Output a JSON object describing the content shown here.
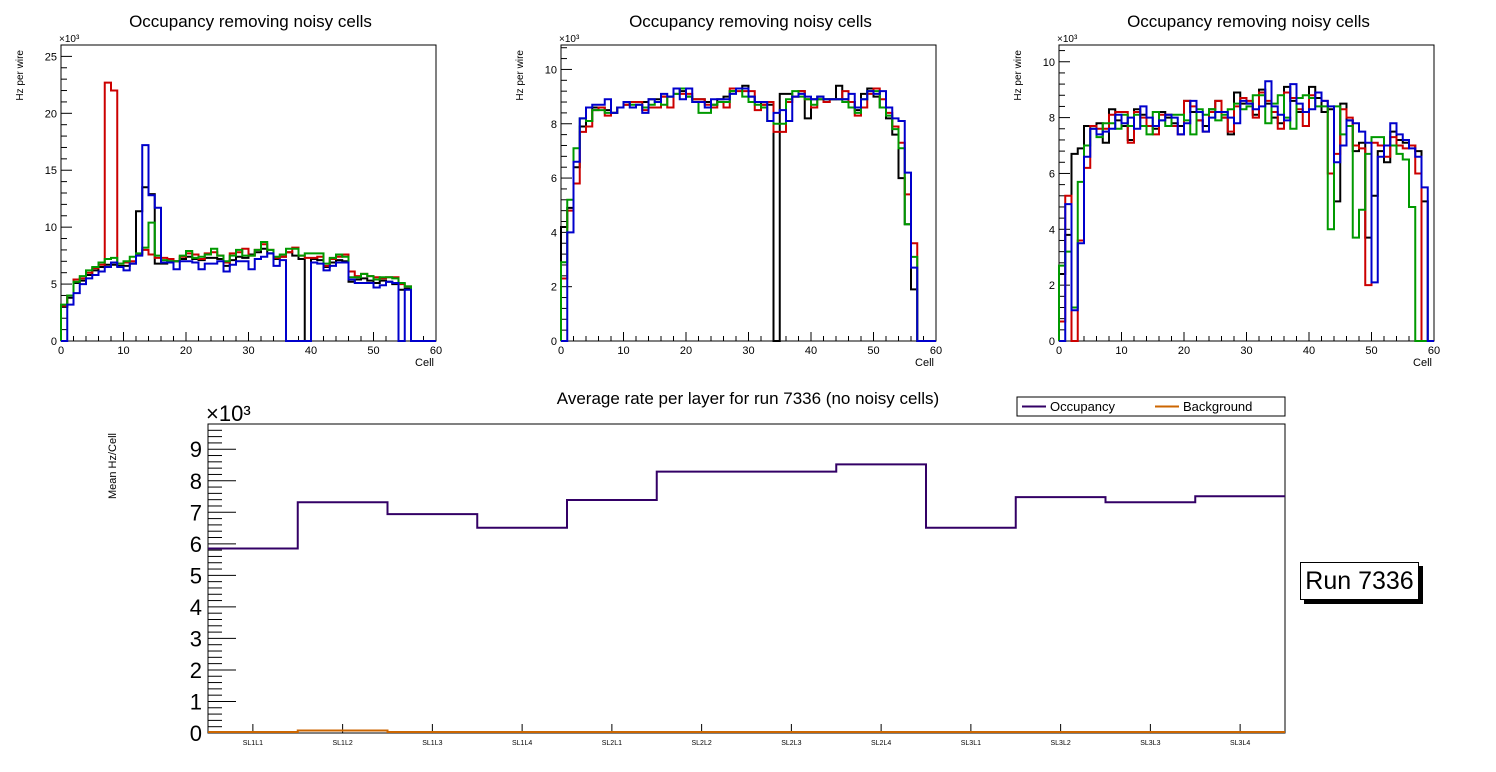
{
  "colors": {
    "black": "#000000",
    "red": "#cc0000",
    "green": "#009900",
    "blue": "#0000cc",
    "occupancy": "#330066",
    "background": "#cc6600"
  },
  "run_label": "Run 7336",
  "chart_data": [
    {
      "type": "line",
      "style": "step-histogram",
      "title": "Occupancy removing noisy cells",
      "xlabel": "Cell",
      "ylabel": "Hz per wire",
      "y_multiplier": "×10³",
      "xlim": [
        0,
        60
      ],
      "ylim": [
        0,
        26
      ],
      "xticks": [
        0,
        10,
        20,
        30,
        40,
        50,
        60
      ],
      "yticks": [
        0,
        5,
        10,
        15,
        20,
        25
      ],
      "series": [
        {
          "name": "black",
          "color": "#000000",
          "values": [
            3.0,
            3.8,
            5.1,
            5.3,
            5.8,
            6.2,
            6.5,
            6.7,
            6.7,
            6.6,
            6.6,
            6.8,
            11.4,
            13.5,
            12.9,
            6.8,
            6.8,
            7.0,
            7.0,
            7.2,
            7.4,
            7.2,
            7.1,
            7.3,
            7.3,
            7.2,
            6.6,
            7.1,
            7.4,
            7.3,
            7.6,
            7.8,
            8.1,
            7.7,
            7.2,
            7.4,
            7.8,
            7.5,
            7.2,
            0.0,
            7.2,
            7.1,
            6.5,
            6.9,
            7.1,
            7.0,
            5.2,
            5.4,
            5.5,
            5.3,
            5.1,
            5.3,
            5.2,
            5.0,
            4.5,
            4.6,
            0.0,
            0.0,
            0.0,
            0.0
          ]
        },
        {
          "name": "red",
          "color": "#cc0000",
          "values": [
            3.1,
            4.0,
            5.4,
            5.5,
            6.0,
            6.4,
            6.7,
            22.7,
            22.0,
            6.8,
            6.9,
            7.0,
            7.6,
            8.0,
            7.6,
            7.3,
            7.3,
            7.2,
            7.0,
            7.4,
            7.7,
            7.6,
            7.2,
            7.7,
            7.8,
            7.5,
            6.9,
            7.7,
            7.8,
            8.1,
            7.5,
            8.0,
            8.5,
            8.0,
            7.3,
            7.4,
            7.8,
            8.2,
            7.5,
            7.3,
            7.3,
            7.4,
            6.6,
            7.2,
            7.4,
            7.6,
            6.1,
            5.7,
            5.9,
            5.7,
            5.6,
            5.5,
            5.6,
            5.6,
            5.0,
            4.8,
            0.0,
            0.0,
            0.0,
            0.0
          ]
        },
        {
          "name": "green",
          "color": "#009900",
          "values": [
            3.2,
            4.0,
            5.2,
            5.7,
            6.2,
            6.5,
            6.9,
            7.2,
            7.3,
            6.8,
            7.0,
            7.4,
            7.7,
            8.2,
            10.4,
            7.5,
            7.1,
            7.0,
            7.0,
            7.5,
            7.9,
            7.3,
            7.4,
            7.6,
            8.1,
            7.5,
            7.0,
            7.5,
            8.0,
            7.5,
            7.5,
            8.0,
            8.7,
            8.0,
            7.4,
            7.6,
            8.1,
            8.1,
            7.5,
            7.7,
            7.7,
            7.7,
            6.8,
            7.3,
            7.6,
            7.4,
            5.6,
            5.6,
            5.9,
            5.7,
            5.4,
            5.6,
            5.6,
            5.5,
            5.1,
            4.8,
            0.0,
            0.0,
            0.0,
            0.0
          ]
        },
        {
          "name": "blue",
          "color": "#0000cc",
          "values": [
            0.0,
            3.2,
            4.2,
            5.0,
            5.5,
            5.8,
            6.1,
            6.5,
            6.9,
            6.5,
            6.2,
            6.8,
            7.5,
            17.2,
            12.8,
            11.7,
            6.9,
            6.9,
            6.3,
            7.0,
            7.0,
            6.9,
            6.3,
            6.8,
            6.8,
            7.0,
            6.1,
            6.7,
            7.0,
            7.0,
            6.3,
            7.2,
            7.4,
            7.7,
            6.6,
            7.1,
            0.0,
            0.0,
            0.0,
            0.0,
            6.9,
            6.8,
            6.2,
            6.6,
            6.9,
            6.9,
            5.4,
            5.1,
            5.1,
            5.1,
            4.7,
            4.9,
            5.2,
            5.1,
            0.0,
            4.5,
            0.0,
            0.0,
            0.0,
            0.0
          ]
        }
      ]
    },
    {
      "type": "line",
      "style": "step-histogram",
      "title": "Occupancy removing noisy cells",
      "xlabel": "Cell",
      "ylabel": "Hz per wire",
      "y_multiplier": "×10³",
      "xlim": [
        0,
        60
      ],
      "ylim": [
        0,
        10.9
      ],
      "xticks": [
        0,
        10,
        20,
        30,
        40,
        50,
        60
      ],
      "yticks": [
        0,
        2,
        4,
        6,
        8,
        10
      ],
      "series": [
        {
          "name": "black",
          "color": "#000000",
          "values": [
            4.2,
            4.9,
            6.4,
            7.9,
            8.1,
            8.6,
            8.6,
            8.5,
            8.4,
            8.6,
            8.7,
            8.8,
            8.8,
            8.8,
            8.9,
            8.9,
            9.0,
            9.0,
            9.3,
            9.2,
            9.0,
            8.9,
            8.9,
            8.8,
            8.7,
            8.9,
            9.0,
            9.2,
            9.3,
            9.4,
            9.0,
            8.8,
            8.7,
            8.7,
            0.0,
            9.1,
            9.1,
            9.0,
            9.2,
            8.2,
            8.9,
            9.0,
            8.9,
            8.9,
            9.4,
            8.9,
            8.8,
            8.5,
            9.1,
            9.3,
            9.0,
            8.6,
            8.2,
            7.6,
            6.0,
            4.3,
            1.9,
            0.0,
            0.0,
            0.0
          ]
        },
        {
          "name": "red",
          "color": "#cc0000",
          "values": [
            2.3,
            4.8,
            5.8,
            7.7,
            7.9,
            8.5,
            8.6,
            8.3,
            8.4,
            8.6,
            8.7,
            8.8,
            8.8,
            8.5,
            8.6,
            8.6,
            9.0,
            8.6,
            9.1,
            9.1,
            9.1,
            8.9,
            8.9,
            8.7,
            8.6,
            8.8,
            8.6,
            9.3,
            9.2,
            9.2,
            9.2,
            8.5,
            8.7,
            8.8,
            7.7,
            7.7,
            8.8,
            9.0,
            9.2,
            8.9,
            8.6,
            8.9,
            8.8,
            8.9,
            8.9,
            9.2,
            8.8,
            8.3,
            8.6,
            9.1,
            9.3,
            8.9,
            8.4,
            7.9,
            7.3,
            5.4,
            3.6,
            0.0,
            0.0,
            0.0
          ]
        },
        {
          "name": "green",
          "color": "#009900",
          "values": [
            2.9,
            5.2,
            7.1,
            8.2,
            8.1,
            8.5,
            8.5,
            8.4,
            8.4,
            8.6,
            8.8,
            8.7,
            8.7,
            8.6,
            8.7,
            8.8,
            8.7,
            9.0,
            9.1,
            9.3,
            9.0,
            8.8,
            8.4,
            8.4,
            8.7,
            8.8,
            8.8,
            9.2,
            9.3,
            9.0,
            8.8,
            8.7,
            8.6,
            8.1,
            8.0,
            8.0,
            8.9,
            9.2,
            9.0,
            8.9,
            8.7,
            8.9,
            8.9,
            8.9,
            8.9,
            8.8,
            8.6,
            8.4,
            8.9,
            9.2,
            9.2,
            8.6,
            8.3,
            7.8,
            7.1,
            4.3,
            3.1,
            0.0,
            0.0,
            0.0
          ]
        },
        {
          "name": "blue",
          "color": "#0000cc",
          "values": [
            0.0,
            4.0,
            6.6,
            8.2,
            8.6,
            8.7,
            8.7,
            8.9,
            8.4,
            8.6,
            8.8,
            8.6,
            8.7,
            8.4,
            8.9,
            8.8,
            9.1,
            9.0,
            9.3,
            8.9,
            9.3,
            8.8,
            8.8,
            8.6,
            8.9,
            8.9,
            8.9,
            9.1,
            9.3,
            9.3,
            9.0,
            8.8,
            8.8,
            8.1,
            8.4,
            8.5,
            8.1,
            9.0,
            9.1,
            9.0,
            8.9,
            9.0,
            8.9,
            8.9,
            8.9,
            8.9,
            9.1,
            8.6,
            8.9,
            9.2,
            9.1,
            9.2,
            8.6,
            8.2,
            8.1,
            6.2,
            2.7,
            0.0,
            0.0,
            0.0
          ]
        }
      ]
    },
    {
      "type": "line",
      "style": "step-histogram",
      "title": "Occupancy removing noisy cells",
      "xlabel": "Cell",
      "ylabel": "Hz per wire",
      "y_multiplier": "×10³",
      "xlim": [
        0,
        60
      ],
      "ylim": [
        0,
        10.6
      ],
      "xticks": [
        0,
        10,
        20,
        30,
        40,
        50,
        60
      ],
      "yticks": [
        0,
        2,
        4,
        6,
        8,
        10
      ],
      "series": [
        {
          "name": "black",
          "color": "#000000",
          "values": [
            2.4,
            3.8,
            6.7,
            6.9,
            7.7,
            7.7,
            7.8,
            7.1,
            8.3,
            7.9,
            7.7,
            7.2,
            8.3,
            8.1,
            7.7,
            7.6,
            8.2,
            8.0,
            7.8,
            7.7,
            8.6,
            8.2,
            7.9,
            7.7,
            8.3,
            8.6,
            8.0,
            7.4,
            8.9,
            8.5,
            8.5,
            8.1,
            9.0,
            8.5,
            8.0,
            7.8,
            9.1,
            8.6,
            8.2,
            8.2,
            9.1,
            8.7,
            8.2,
            8.3,
            5.0,
            8.5,
            7.9,
            6.8,
            7.1,
            3.7,
            5.2,
            6.8,
            6.4,
            7.5,
            7.2,
            7.1,
            7.0,
            6.8,
            5.0,
            0.0
          ]
        },
        {
          "name": "red",
          "color": "#cc0000",
          "values": [
            0.7,
            5.2,
            0.0,
            3.6,
            6.2,
            7.7,
            7.6,
            7.6,
            8.1,
            8.2,
            8.2,
            7.1,
            8.2,
            8.0,
            7.7,
            7.4,
            8.1,
            8.1,
            7.7,
            7.4,
            8.6,
            8.4,
            7.9,
            7.5,
            8.2,
            8.6,
            8.0,
            7.5,
            8.4,
            8.7,
            8.6,
            8.0,
            8.9,
            8.6,
            8.2,
            7.6,
            8.9,
            8.7,
            8.3,
            7.7,
            8.8,
            8.9,
            8.6,
            6.0,
            6.7,
            8.3,
            8.0,
            7.0,
            6.9,
            2.0,
            7.1,
            7.0,
            6.6,
            7.3,
            7.0,
            6.9,
            7.0,
            6.0,
            0.0,
            0.0
          ]
        },
        {
          "name": "green",
          "color": "#009900",
          "values": [
            2.7,
            3.2,
            1.2,
            5.7,
            7.0,
            7.6,
            7.3,
            7.8,
            7.8,
            7.6,
            8.1,
            7.7,
            8.1,
            7.7,
            7.4,
            8.2,
            7.9,
            7.7,
            8.1,
            8.1,
            7.9,
            7.4,
            8.3,
            8.1,
            8.3,
            7.9,
            8.1,
            8.3,
            8.5,
            8.3,
            8.4,
            8.8,
            8.8,
            7.8,
            8.5,
            8.8,
            8.0,
            7.6,
            8.7,
            8.8,
            8.7,
            8.4,
            8.4,
            4.0,
            8.4,
            7.4,
            7.7,
            3.7,
            4.7,
            6.7,
            7.3,
            7.3,
            7.0,
            7.0,
            6.7,
            6.5,
            4.8,
            0.0,
            0.0,
            0.0
          ]
        },
        {
          "name": "blue",
          "color": "#0000cc",
          "values": [
            0.0,
            4.9,
            1.1,
            3.5,
            6.6,
            7.6,
            7.4,
            7.5,
            7.6,
            8.1,
            7.8,
            8.0,
            7.6,
            8.4,
            8.0,
            7.7,
            7.9,
            8.1,
            8.0,
            7.4,
            7.8,
            8.6,
            8.2,
            7.5,
            8.0,
            8.2,
            8.2,
            8.0,
            7.8,
            8.6,
            8.5,
            8.3,
            8.4,
            9.3,
            8.4,
            8.1,
            7.9,
            9.2,
            8.5,
            8.2,
            8.3,
            8.9,
            8.6,
            8.4,
            6.4,
            7.0,
            7.9,
            7.8,
            7.5,
            7.1,
            2.1,
            6.6,
            7.0,
            7.8,
            7.4,
            7.2,
            6.9,
            6.6,
            5.5,
            0.0
          ]
        }
      ]
    },
    {
      "type": "line",
      "style": "step-histogram",
      "title": "Average rate per layer for run 7336 (no noisy cells)",
      "xlabel": "",
      "ylabel": "Mean Hz/Cell",
      "y_multiplier": "×10³",
      "ylim": [
        0,
        9.8
      ],
      "yticks": [
        0,
        1,
        2,
        3,
        4,
        5,
        6,
        7,
        8,
        9
      ],
      "categories": [
        "SL1L1",
        "SL1L2",
        "SL1L3",
        "SL1L4",
        "SL2L1",
        "SL2L2",
        "SL2L3",
        "SL2L4",
        "SL3L1",
        "SL3L2",
        "SL3L3",
        "SL3L4"
      ],
      "legend": {
        "position": "top-right",
        "entries": [
          "Occupancy",
          "Background"
        ]
      },
      "series": [
        {
          "name": "Occupancy",
          "color": "#330066",
          "values": [
            5.85,
            7.32,
            6.94,
            6.51,
            7.39,
            8.29,
            8.29,
            8.52,
            6.51,
            7.48,
            7.32,
            7.51
          ]
        },
        {
          "name": "Background",
          "color": "#cc6600",
          "values": [
            0.03,
            0.08,
            0.03,
            0.03,
            0.03,
            0.03,
            0.03,
            0.03,
            0.03,
            0.03,
            0.03,
            0.03
          ]
        }
      ]
    }
  ]
}
